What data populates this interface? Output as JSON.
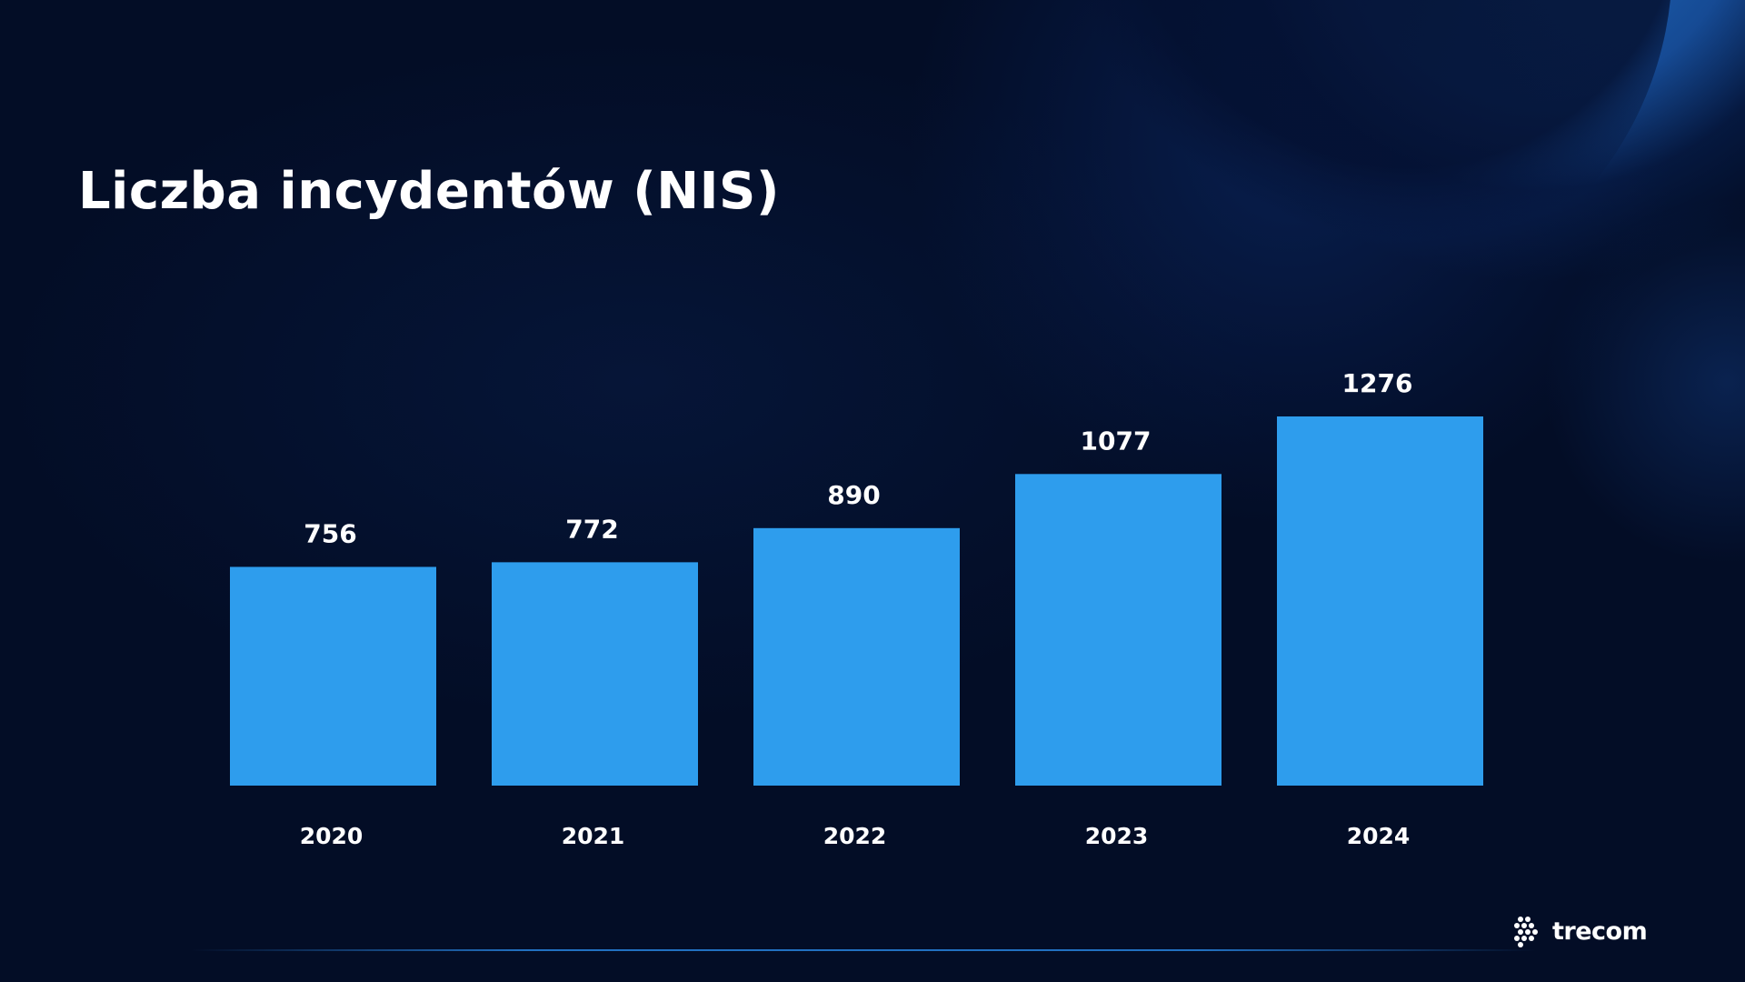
{
  "slide": {
    "title": "Liczba incydentów (NIS)",
    "brand": "trecom"
  },
  "colors": {
    "background": "#030d26",
    "bar": "#2e9ded",
    "text": "#ffffff",
    "accent_glow": "#2378d2"
  },
  "icons": [
    "trecom-logo-icon"
  ],
  "chart_data": {
    "type": "bar",
    "title": "Liczba incydentów (NIS)",
    "categories": [
      "2020",
      "2021",
      "2022",
      "2023",
      "2024"
    ],
    "values": [
      756,
      772,
      890,
      1077,
      1276
    ],
    "data_labels": [
      "756",
      "772",
      "890",
      "1077",
      "1276"
    ],
    "ylim": [
      0,
      1276
    ],
    "grid": false,
    "legend": "none",
    "y_axis_visible": false
  }
}
